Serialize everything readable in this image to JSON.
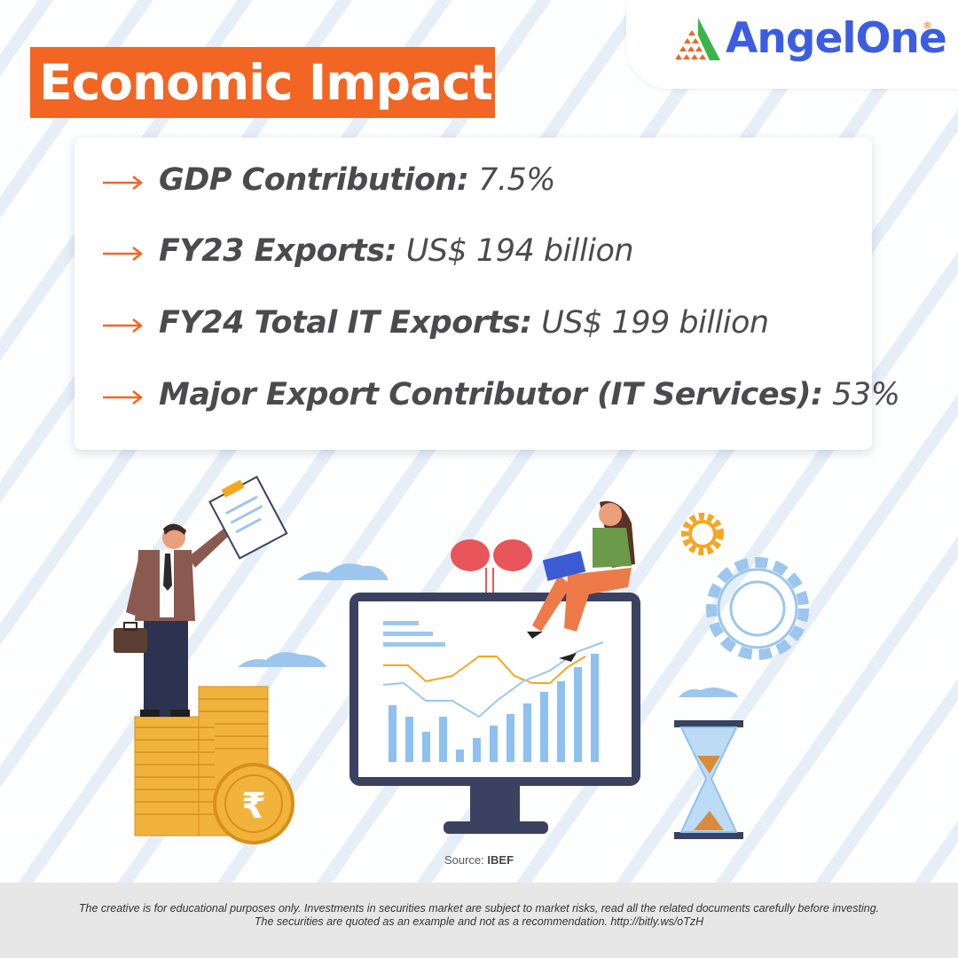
{
  "brand": {
    "name": "AngelOne",
    "registered_mark": "®",
    "accent_color": "#f26522",
    "brand_color": "#3c5de0"
  },
  "title": "Economic Impact",
  "stats": [
    {
      "label": "GDP Contribution",
      "sep": ":",
      "value": "7.5%"
    },
    {
      "label": "FY23 Exports",
      "sep": ":",
      "value": "US$ 194 billion"
    },
    {
      "label": "FY24 Total IT Exports",
      "sep": ":",
      "value": "US$ 199 billion"
    },
    {
      "label": "Major Export Contributor (IT Services)",
      "sep": ":",
      "value": "53%"
    }
  ],
  "icons": {
    "bullet": "right-arrow-icon"
  },
  "source": {
    "prefix": "Source:",
    "name": "IBEF"
  },
  "disclaimer": {
    "line1": "The creative is for educational purposes only. Investments in securities market are subject to market risks, read all the related documents carefully before investing.",
    "line2": "The securities are quoted as an example and not as a recommendation. http://bitly.ws/oTzH"
  }
}
